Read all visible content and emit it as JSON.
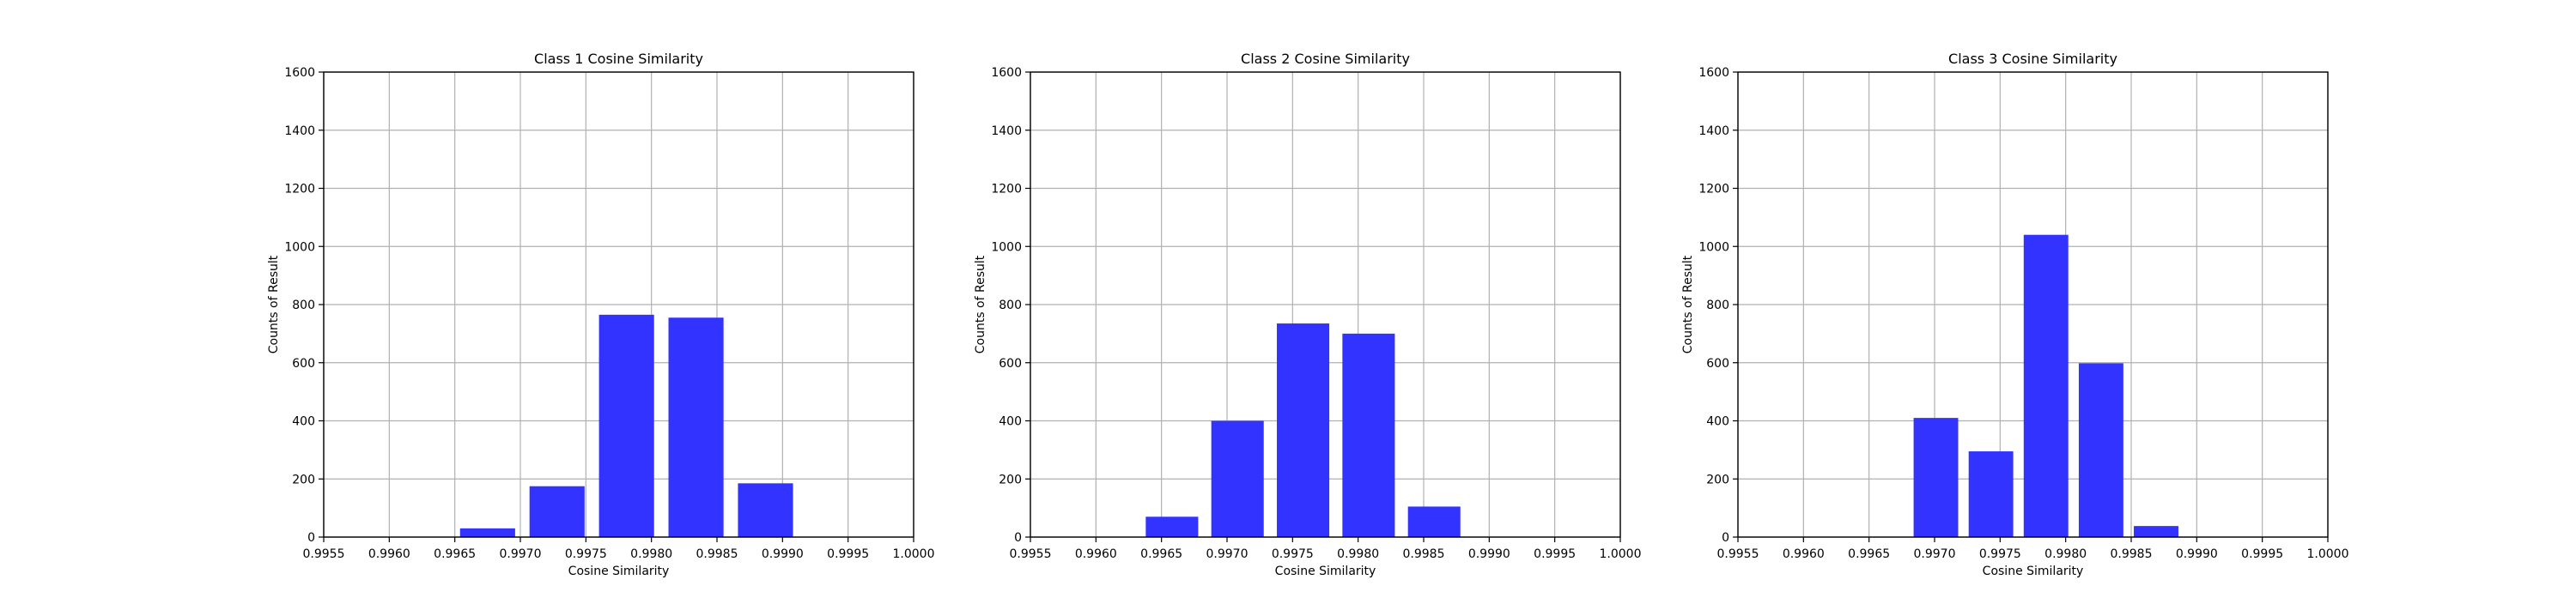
{
  "chart_data": [
    {
      "type": "bar",
      "title": "Class 1 Cosine Similarity",
      "xlabel": "Cosine Similarity",
      "ylabel": "Counts of Result",
      "x": [
        0.99675,
        0.99728,
        0.99781,
        0.99834,
        0.99887
      ],
      "values": [
        30,
        175,
        765,
        755,
        185
      ],
      "bar_width": 0.00042,
      "xlim": [
        0.9955,
        1.0
      ],
      "ylim": [
        0,
        1600
      ],
      "xticks": [
        "0.9955",
        "0.9960",
        "0.9965",
        "0.9970",
        "0.9975",
        "0.9980",
        "0.9985",
        "0.9990",
        "0.9995",
        "1.0000"
      ],
      "yticks": [
        "0",
        "200",
        "400",
        "600",
        "800",
        "1000",
        "1200",
        "1400",
        "1600"
      ],
      "grid": true,
      "bar_color": "#3333ff"
    },
    {
      "type": "bar",
      "title": "Class 2 Cosine Similarity",
      "xlabel": "Cosine Similarity",
      "ylabel": "Counts of Result",
      "x": [
        0.99658,
        0.99708,
        0.99758,
        0.99808,
        0.99858
      ],
      "values": [
        70,
        400,
        735,
        700,
        105
      ],
      "bar_width": 0.0004,
      "xlim": [
        0.9955,
        1.0
      ],
      "ylim": [
        0,
        1600
      ],
      "xticks": [
        "0.9955",
        "0.9960",
        "0.9965",
        "0.9970",
        "0.9975",
        "0.9980",
        "0.9985",
        "0.9990",
        "0.9995",
        "1.0000"
      ],
      "yticks": [
        "0",
        "200",
        "400",
        "600",
        "800",
        "1000",
        "1200",
        "1400",
        "1600"
      ],
      "grid": true,
      "bar_color": "#3333ff"
    },
    {
      "type": "bar",
      "title": "Class 3 Cosine Similarity",
      "xlabel": "Cosine Similarity",
      "ylabel": "Counts of Result",
      "x": [
        0.99701,
        0.99743,
        0.99785,
        0.99827,
        0.99869
      ],
      "values": [
        410,
        295,
        1040,
        598,
        38
      ],
      "bar_width": 0.00034,
      "xlim": [
        0.9955,
        1.0
      ],
      "ylim": [
        0,
        1600
      ],
      "xticks": [
        "0.9955",
        "0.9960",
        "0.9965",
        "0.9970",
        "0.9975",
        "0.9980",
        "0.9985",
        "0.9990",
        "0.9995",
        "1.0000"
      ],
      "yticks": [
        "0",
        "200",
        "400",
        "600",
        "800",
        "1000",
        "1200",
        "1400",
        "1600"
      ],
      "grid": true,
      "bar_color": "#3333ff"
    }
  ]
}
